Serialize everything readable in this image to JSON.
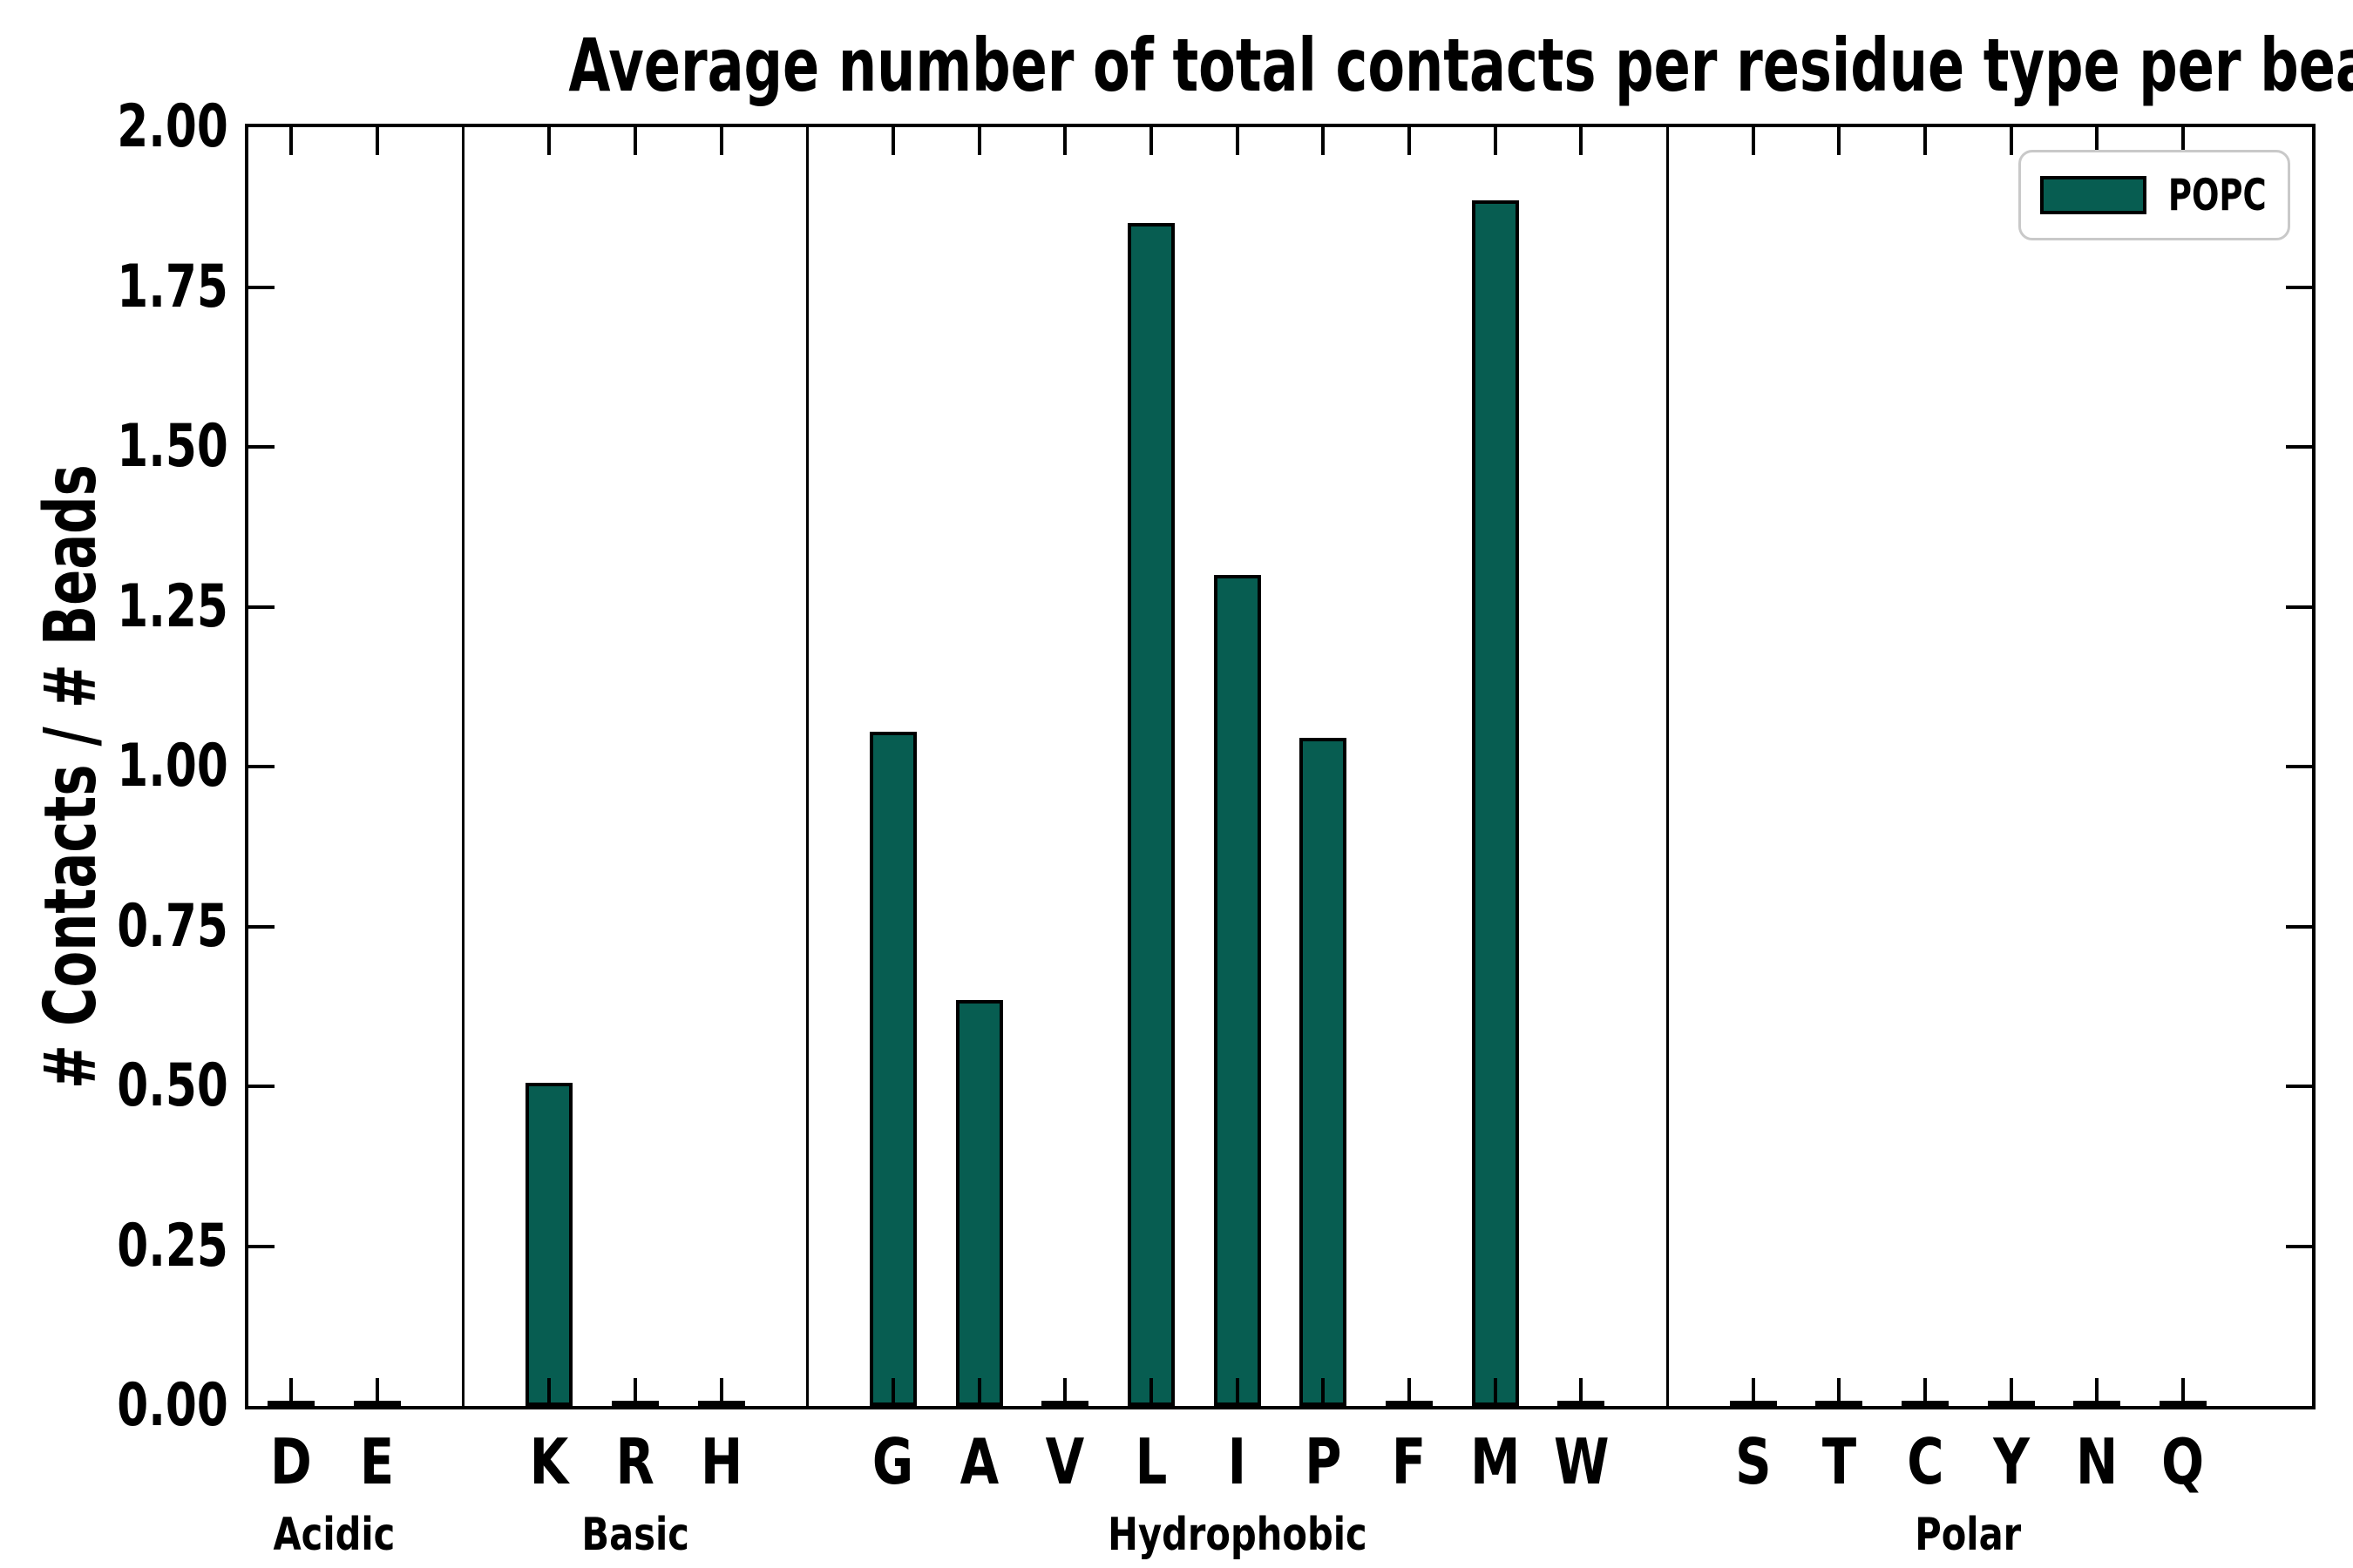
{
  "legend": {
    "label": "POPC"
  },
  "style": {
    "bar_fill": "#075d51",
    "bar_edge": "#000000",
    "axis_color": "#000000",
    "legend_border": "#c9c9c9",
    "background": "#ffffff"
  },
  "chart_data": {
    "type": "bar",
    "title": "Average number of total contacts per residue type per bead",
    "xlabel": "",
    "ylabel": "# Contacts / # Beads",
    "ylim": [
      0,
      2
    ],
    "yticks": [
      0.0,
      0.25,
      0.5,
      0.75,
      1.0,
      1.25,
      1.5,
      1.75,
      2.0
    ],
    "ytick_labels": [
      "0.00",
      "0.25",
      "0.50",
      "0.75",
      "1.00",
      "1.25",
      "1.50",
      "1.75",
      "2.00"
    ],
    "grid": false,
    "legend_entries": [
      "POPC"
    ],
    "legend_position": "upper right",
    "series_name": "POPC",
    "groups": [
      {
        "label": "Acidic",
        "categories": [
          "D",
          "E"
        ],
        "values": [
          0.005,
          0.005
        ]
      },
      {
        "label": "Basic",
        "categories": [
          "K",
          "R",
          "H"
        ],
        "values": [
          0.505,
          0.005,
          0.005
        ]
      },
      {
        "label": "Hydrophobic",
        "categories": [
          "G",
          "A",
          "V",
          "L",
          "I",
          "P",
          "F",
          "M",
          "W"
        ],
        "values": [
          1.055,
          0.635,
          0.005,
          1.85,
          1.3,
          1.045,
          0.005,
          1.885,
          0.005
        ]
      },
      {
        "label": "Polar",
        "categories": [
          "S",
          "T",
          "C",
          "Y",
          "N",
          "Q"
        ],
        "values": [
          0.005,
          0.005,
          0.005,
          0.005,
          0.005,
          0.005
        ]
      }
    ]
  }
}
